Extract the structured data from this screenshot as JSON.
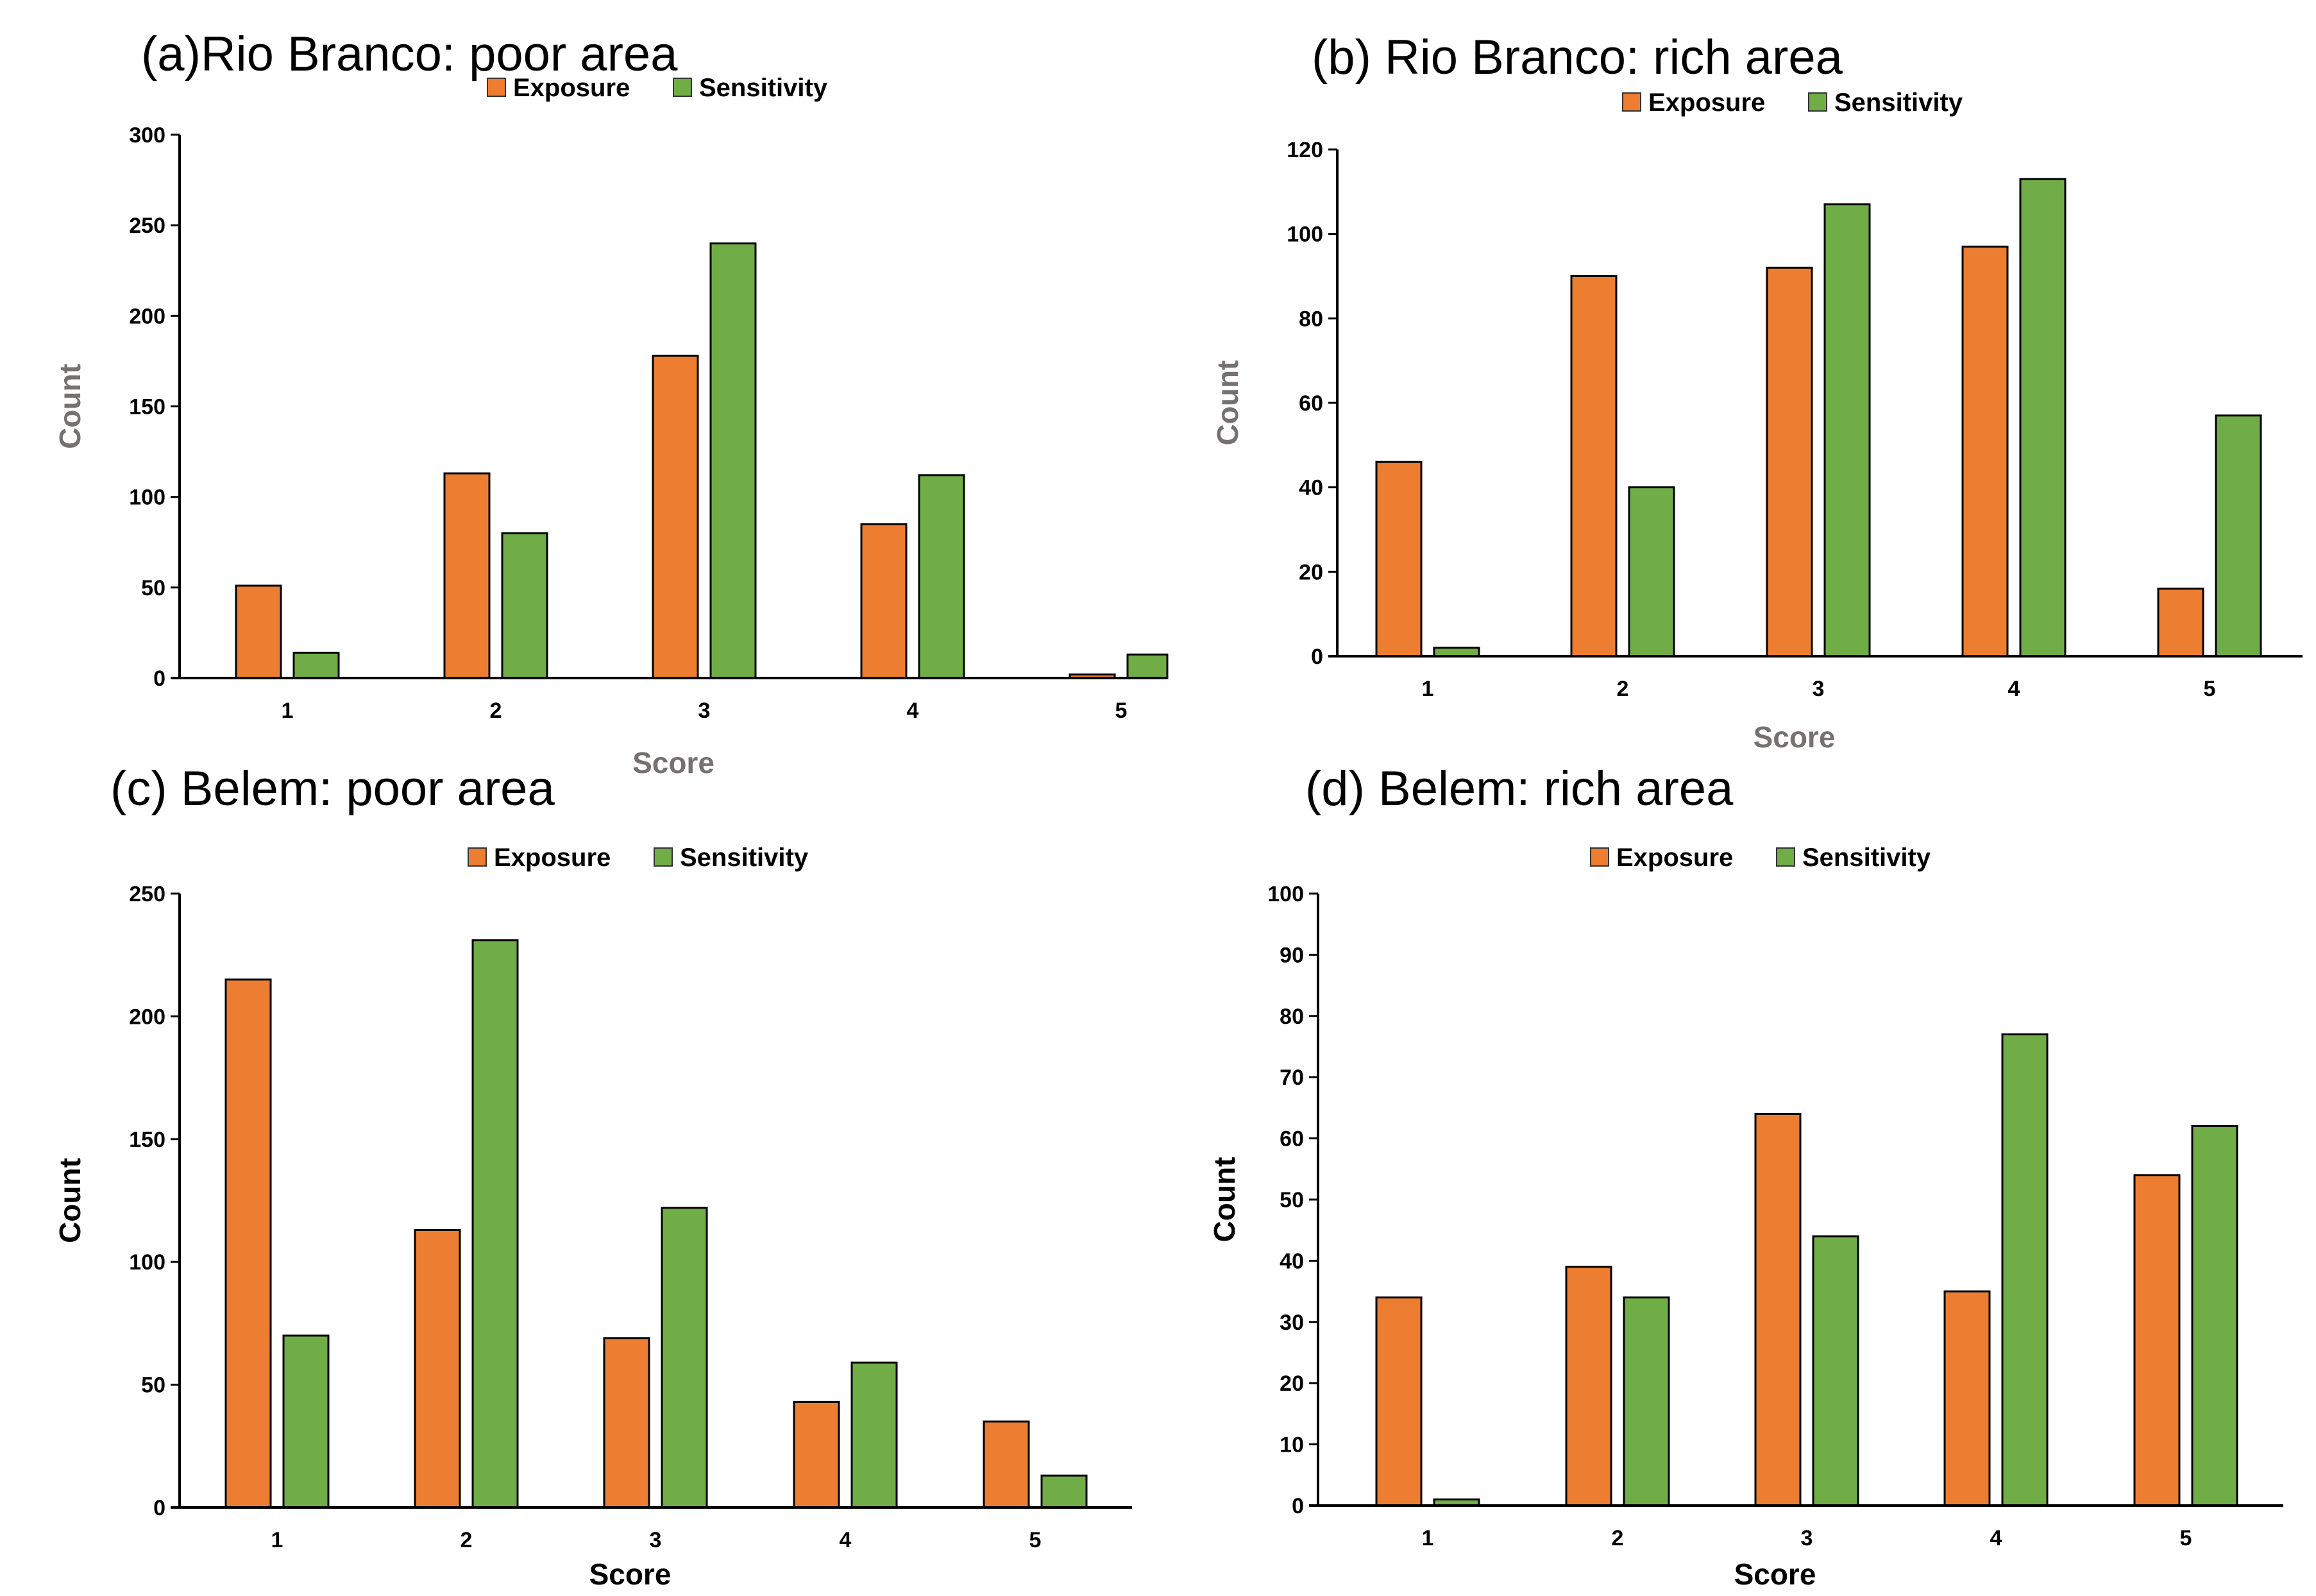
{
  "chart_data": [
    {
      "type": "bar",
      "title": "(a)Rio Branco: poor area",
      "xlabel": "Score",
      "ylabel": "Count",
      "categories": [
        "1",
        "2",
        "3",
        "4",
        "5"
      ],
      "ylim": [
        0,
        300
      ],
      "yticks": [
        "0",
        "50",
        "100",
        "150",
        "200",
        "250",
        "300"
      ],
      "series": [
        {
          "name": "Exposure",
          "values": [
            51,
            113,
            178,
            85,
            2
          ]
        },
        {
          "name": "Sensitivity",
          "values": [
            14,
            80,
            240,
            112,
            13
          ]
        }
      ],
      "legend": "top",
      "grid": false
    },
    {
      "type": "bar",
      "title": "(b) Rio Branco: rich area",
      "xlabel": "Score",
      "ylabel": "Count",
      "categories": [
        "1",
        "2",
        "3",
        "4",
        "5"
      ],
      "ylim": [
        0,
        120
      ],
      "yticks": [
        "0",
        "20",
        "40",
        "60",
        "80",
        "100",
        "120"
      ],
      "series": [
        {
          "name": "Exposure",
          "values": [
            46,
            90,
            92,
            97,
            16
          ]
        },
        {
          "name": "Sensitivity",
          "values": [
            2,
            40,
            107,
            113,
            57
          ]
        }
      ],
      "legend": "top",
      "grid": false
    },
    {
      "type": "bar",
      "title": "(c) Belem: poor area",
      "xlabel": "Score",
      "ylabel": "Count",
      "categories": [
        "1",
        "2",
        "3",
        "4",
        "5"
      ],
      "ylim": [
        0,
        250
      ],
      "yticks": [
        "0",
        "50",
        "100",
        "150",
        "200",
        "250"
      ],
      "series": [
        {
          "name": "Exposure",
          "values": [
            215,
            113,
            69,
            43,
            35
          ]
        },
        {
          "name": "Sensitivity",
          "values": [
            70,
            231,
            122,
            59,
            13
          ]
        }
      ],
      "legend": "top",
      "grid": false
    },
    {
      "type": "bar",
      "title": "(d) Belem: rich area",
      "xlabel": "Score",
      "ylabel": "Count",
      "categories": [
        "1",
        "2",
        "3",
        "4",
        "5"
      ],
      "ylim": [
        0,
        100
      ],
      "yticks": [
        "0",
        "10",
        "20",
        "30",
        "40",
        "50",
        "60",
        "70",
        "80",
        "90",
        "100"
      ],
      "series": [
        {
          "name": "Exposure",
          "values": [
            34,
            39,
            64,
            35,
            54
          ]
        },
        {
          "name": "Sensitivity",
          "values": [
            1,
            34,
            44,
            77,
            62
          ]
        }
      ],
      "legend": "top",
      "grid": false
    }
  ],
  "colors": {
    "exposure": "#ED7D31",
    "sensitivity": "#70AD47",
    "axis_title_gray": "#767171",
    "axis_title_black": "#000000"
  }
}
